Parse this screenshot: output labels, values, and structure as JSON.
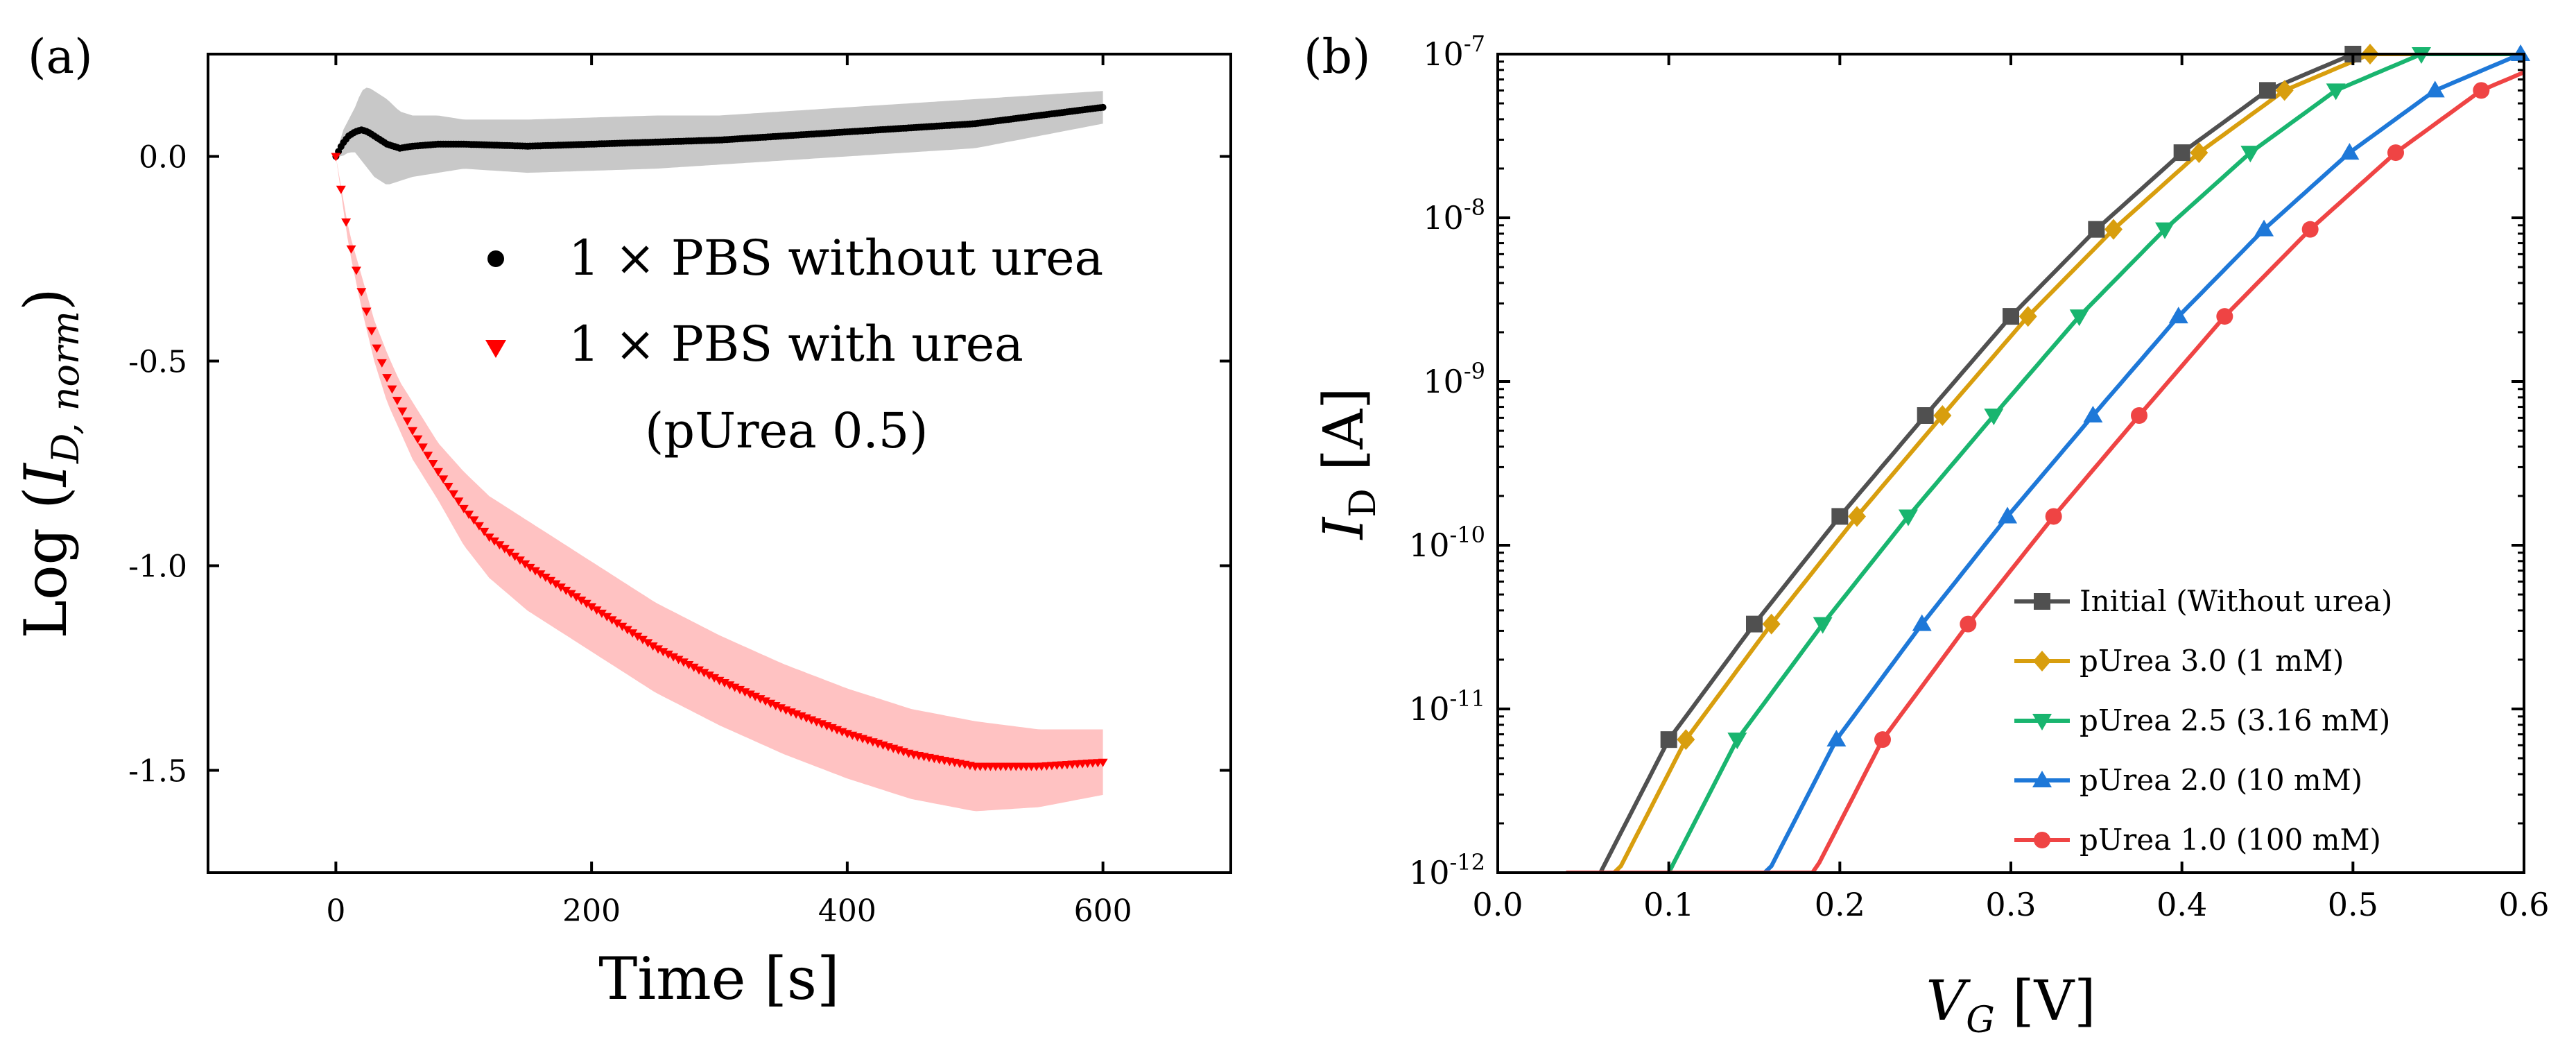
{
  "chart_data": [
    {
      "panel_label": "(a)",
      "type": "scatter",
      "xlabel": "Time [s]",
      "ylabel": "Log (ID, norm)",
      "ylabel_parts": {
        "prefix": "Log (",
        "var": "I",
        "sub": "D, norm",
        "suffix": ")"
      },
      "xlim": [
        -100,
        700
      ],
      "ylim": [
        -1.75,
        0.25
      ],
      "xticks": [
        0,
        200,
        400,
        600
      ],
      "xtick_labels": [
        "0",
        "200",
        "400",
        "600"
      ],
      "yticks": [
        0.0,
        -0.5,
        -1.0,
        -1.5
      ],
      "ytick_labels": [
        "0.0",
        "-0.5",
        "-1.0",
        "-1.5"
      ],
      "grid": false,
      "legend_position": "center-right",
      "legend": [
        {
          "label": "1 × PBS without urea",
          "marker": "circle",
          "color": "#000000"
        },
        {
          "label": "1 × PBS with urea",
          "marker": "triangle-down",
          "color": "#ff0000"
        }
      ],
      "legend_note": "(pUrea 0.5)",
      "series": [
        {
          "name": "1 × PBS without urea",
          "color": "#000000",
          "band_color": "#c8c8c8",
          "x": [
            0,
            5,
            10,
            15,
            20,
            25,
            30,
            40,
            50,
            60,
            80,
            100,
            150,
            200,
            250,
            300,
            350,
            400,
            450,
            500,
            550,
            600
          ],
          "y": [
            0.0,
            0.03,
            0.05,
            0.06,
            0.065,
            0.06,
            0.05,
            0.03,
            0.02,
            0.025,
            0.03,
            0.03,
            0.025,
            0.03,
            0.035,
            0.04,
            0.05,
            0.06,
            0.07,
            0.08,
            0.1,
            0.12
          ],
          "upper": [
            0.0,
            0.06,
            0.09,
            0.12,
            0.16,
            0.17,
            0.16,
            0.14,
            0.11,
            0.1,
            0.1,
            0.09,
            0.09,
            0.095,
            0.1,
            0.1,
            0.11,
            0.12,
            0.13,
            0.14,
            0.15,
            0.16
          ],
          "lower": [
            0.0,
            0.0,
            0.01,
            0.01,
            -0.01,
            -0.03,
            -0.05,
            -0.07,
            -0.06,
            -0.05,
            -0.04,
            -0.03,
            -0.04,
            -0.035,
            -0.03,
            -0.02,
            -0.01,
            0.0,
            0.01,
            0.02,
            0.05,
            0.08
          ]
        },
        {
          "name": "1 × PBS with urea",
          "color": "#ff0000",
          "band_color": "#ffc2c2",
          "x": [
            0,
            10,
            20,
            30,
            40,
            50,
            60,
            70,
            80,
            100,
            120,
            150,
            200,
            250,
            300,
            350,
            400,
            450,
            500,
            550,
            600
          ],
          "y": [
            0.0,
            -0.2,
            -0.33,
            -0.45,
            -0.54,
            -0.61,
            -0.67,
            -0.72,
            -0.77,
            -0.86,
            -0.93,
            -1.0,
            -1.1,
            -1.2,
            -1.28,
            -1.35,
            -1.41,
            -1.46,
            -1.49,
            -1.49,
            -1.48
          ],
          "upper": [
            0.0,
            -0.18,
            -0.29,
            -0.4,
            -0.48,
            -0.55,
            -0.6,
            -0.65,
            -0.7,
            -0.77,
            -0.83,
            -0.89,
            -0.99,
            -1.09,
            -1.17,
            -1.24,
            -1.3,
            -1.35,
            -1.38,
            -1.4,
            -1.4
          ],
          "lower": [
            0.0,
            -0.22,
            -0.37,
            -0.5,
            -0.6,
            -0.67,
            -0.74,
            -0.79,
            -0.84,
            -0.95,
            -1.03,
            -1.11,
            -1.21,
            -1.31,
            -1.39,
            -1.46,
            -1.52,
            -1.57,
            -1.6,
            -1.59,
            -1.56
          ]
        }
      ]
    },
    {
      "panel_label": "(b)",
      "type": "line",
      "xlabel": "VG [V]",
      "xlabel_parts": {
        "var": "V",
        "sub": "G",
        "suffix": " [V]"
      },
      "ylabel": "ID [A]",
      "ylabel_parts": {
        "var": "I",
        "sub": "D",
        "suffix": " [A]"
      },
      "xlim": [
        0.0,
        0.6
      ],
      "ylim": [
        1e-12,
        1e-07
      ],
      "yscale": "log",
      "xticks": [
        0.0,
        0.1,
        0.2,
        0.3,
        0.4,
        0.5,
        0.6
      ],
      "xtick_labels": [
        "0.0",
        "0.1",
        "0.2",
        "0.3",
        "0.4",
        "0.5",
        "0.6"
      ],
      "yticks": [
        1e-12,
        1e-11,
        1e-10,
        1e-09,
        1e-08,
        1e-07
      ],
      "ytick_labels": [
        {
          "base": "10",
          "exp": "-12"
        },
        {
          "base": "10",
          "exp": "-11"
        },
        {
          "base": "10",
          "exp": "-10"
        },
        {
          "base": "10",
          "exp": "-9"
        },
        {
          "base": "10",
          "exp": "-8"
        },
        {
          "base": "10",
          "exp": "-7"
        }
      ],
      "grid": false,
      "legend_position": "bottom-right",
      "series": [
        {
          "name": "Initial  (Without urea)",
          "color": "#505050",
          "marker": "square",
          "shift": 0.0
        },
        {
          "name": "pUrea 3.0  (1 mM)",
          "color": "#d89e0e",
          "marker": "diamond",
          "shift": 0.01
        },
        {
          "name": "pUrea 2.5  (3.16 mM)",
          "color": "#19b56f",
          "marker": "triangle-down",
          "shift": 0.04
        },
        {
          "name": "pUrea 2.0  (10 mM)",
          "color": "#1e78d8",
          "marker": "triangle-up",
          "shift": 0.098
        },
        {
          "name": "pUrea 1.0  (100 mM)",
          "color": "#ef4444",
          "marker": "circle",
          "shift": 0.125
        }
      ],
      "base_curve": {
        "x": [
          0.06,
          0.1,
          0.15,
          0.2,
          0.25,
          0.3,
          0.35,
          0.4,
          0.45,
          0.5,
          0.55,
          0.6
        ],
        "y": [
          1e-12,
          6.5e-12,
          3.3e-11,
          1.5e-10,
          6.2e-10,
          2.5e-09,
          8.5e-09,
          2.5e-08,
          6e-08,
          1e-07,
          1e-07,
          1e-07
        ]
      },
      "marker_x": [
        0.1,
        0.15,
        0.2,
        0.25,
        0.3,
        0.35,
        0.4,
        0.45,
        0.5
      ]
    }
  ]
}
